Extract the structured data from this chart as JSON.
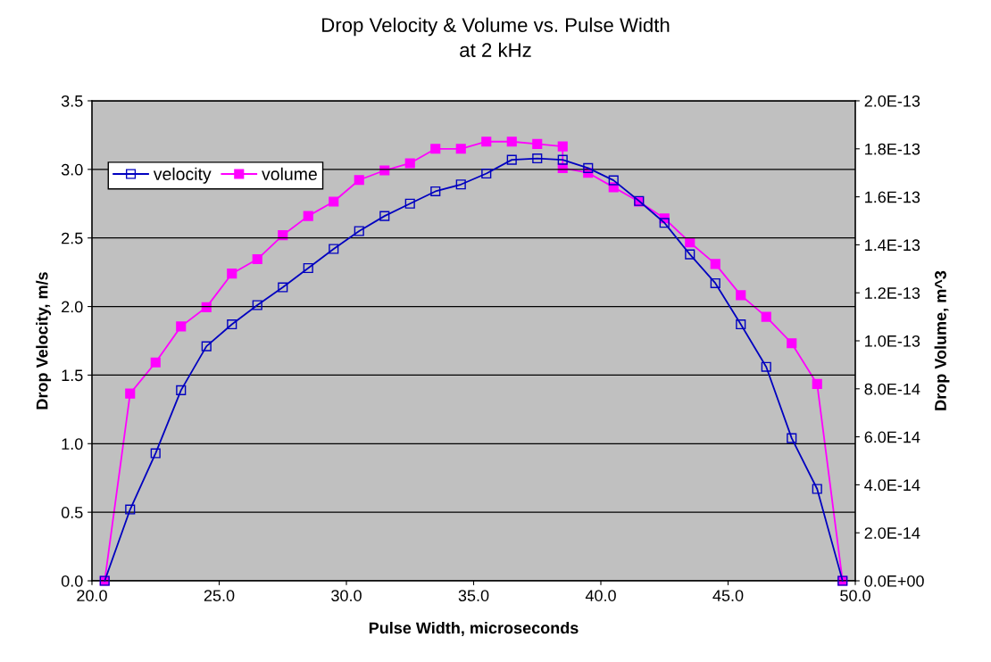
{
  "chart_data": {
    "type": "line",
    "title": "Drop Velocity & Volume vs. Pulse Width",
    "subtitle": "at 2 kHz",
    "xlabel": "Pulse Width, microseconds",
    "ylabel": "Drop Velocity, m/s",
    "y2label": "Drop Volume, m^3",
    "xlim": [
      20,
      50
    ],
    "xticks": [
      {
        "value": 20,
        "label": "20.0"
      },
      {
        "value": 25,
        "label": "25.0"
      },
      {
        "value": 30,
        "label": "30.0"
      },
      {
        "value": 35,
        "label": "35.0"
      },
      {
        "value": 40,
        "label": "40.0"
      },
      {
        "value": 45,
        "label": "45.0"
      },
      {
        "value": 50,
        "label": "50.0"
      }
    ],
    "ylim": [
      0,
      3.5
    ],
    "yticks": [
      {
        "value": 0,
        "label": "0.0"
      },
      {
        "value": 0.5,
        "label": "0.5"
      },
      {
        "value": 1,
        "label": "1.0"
      },
      {
        "value": 1.5,
        "label": "1.5"
      },
      {
        "value": 2,
        "label": "2.0"
      },
      {
        "value": 2.5,
        "label": "2.5"
      },
      {
        "value": 3,
        "label": "3.0"
      },
      {
        "value": 3.5,
        "label": "3.5"
      }
    ],
    "y2lim": [
      0,
      2e-13
    ],
    "y2ticks": [
      {
        "value": 0,
        "label": "0.0E+00"
      },
      {
        "value": 2e-14,
        "label": "2.0E-14"
      },
      {
        "value": 4e-14,
        "label": "4.0E-14"
      },
      {
        "value": 6e-14,
        "label": "6.0E-14"
      },
      {
        "value": 8e-14,
        "label": "8.0E-14"
      },
      {
        "value": 1e-13,
        "label": "1.0E-13"
      },
      {
        "value": 1.2e-13,
        "label": "1.2E-13"
      },
      {
        "value": 1.4e-13,
        "label": "1.4E-13"
      },
      {
        "value": 1.6e-13,
        "label": "1.6E-13"
      },
      {
        "value": 1.8e-13,
        "label": "1.8E-13"
      },
      {
        "value": 2e-13,
        "label": "2.0E-13"
      }
    ],
    "grid": "y",
    "legend": "top left",
    "marker": "square",
    "line_style": "solid",
    "series": [
      {
        "name": "velocity",
        "color": "#0000c0",
        "x": [
          20.5,
          21.5,
          22.5,
          23.5,
          24.5,
          25.5,
          26.5,
          27.5,
          28.5,
          29.5,
          30.5,
          31.5,
          32.5,
          33.5,
          34.5,
          35.5,
          36.5,
          37.5,
          38.5,
          39.5,
          40.5,
          41.5,
          42.5,
          43.5,
          44.5,
          45.5,
          46.5,
          47.5,
          48.5,
          49.5
        ],
        "values": [
          0,
          0.52,
          0.93,
          1.39,
          1.71,
          1.87,
          2.01,
          2.14,
          2.28,
          2.42,
          2.55,
          2.66,
          2.75,
          2.84,
          2.89,
          2.97,
          3.07,
          3.08,
          3.07,
          3.01,
          2.92,
          2.77,
          2.61,
          2.38,
          2.17,
          1.87,
          1.56,
          1.04,
          0.67,
          0
        ]
      },
      {
        "name": "volume",
        "color": "#ff00ff",
        "axis": "y2",
        "x": [
          20.5,
          21.5,
          22.5,
          23.5,
          24.5,
          25.5,
          26.5,
          27.5,
          28.5,
          29.5,
          30.5,
          31.5,
          32.5,
          33.5,
          34.5,
          35.5,
          36.5,
          37.5,
          38.5,
          38.5,
          39.5,
          40.5,
          41.5,
          42.5,
          43.5,
          44.5,
          45.5,
          46.5,
          47.5,
          48.5,
          49.5
        ],
        "values": [
          0,
          7.8e-14,
          9.1e-14,
          1.06e-13,
          1.14e-13,
          1.28e-13,
          1.34e-13,
          1.44e-13,
          1.52e-13,
          1.58e-13,
          1.67e-13,
          1.71e-13,
          1.74e-13,
          1.8e-13,
          1.8e-13,
          1.83e-13,
          1.83e-13,
          1.82e-13,
          1.81e-13,
          1.72e-13,
          1.7e-13,
          1.64e-13,
          1.58e-13,
          1.51e-13,
          1.41e-13,
          1.32e-13,
          1.19e-13,
          1.1e-13,
          9.9e-14,
          8.2e-14,
          0
        ]
      }
    ]
  }
}
